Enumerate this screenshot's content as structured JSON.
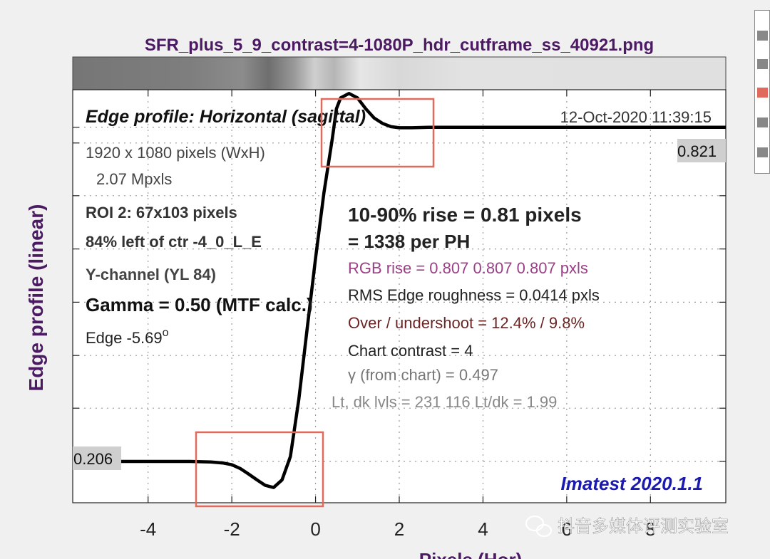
{
  "title": "SFR_plus_5_9_contrast=4-1080P_hdr_cutframe_ss_40921.png",
  "chart_data": {
    "type": "line",
    "title": "Edge profile: Horizontal (sagittal)",
    "datetime": "12-Oct-2020 11:39:15",
    "xlabel": "Pixels (Hor)",
    "ylabel": "Edge profile (linear)",
    "xlim": [
      -5.8,
      9.8
    ],
    "ylim": [
      0.13,
      0.89
    ],
    "xticks": [
      "-4",
      "-2",
      "0",
      "2",
      "4",
      "6",
      "8"
    ],
    "xtick_values": [
      -4,
      -2,
      0,
      2,
      4,
      6,
      8
    ],
    "y_tick_values": [
      0.206,
      0.304,
      0.401,
      0.499,
      0.597,
      0.695,
      0.792,
      0.821
    ],
    "grid": true,
    "low_level_label": "0.206",
    "high_level_label": "0.821",
    "series": [
      {
        "x": [
          -5.8,
          -5.0,
          -4.0,
          -3.0,
          -2.5,
          -2.2,
          -2.0,
          -1.8,
          -1.6,
          -1.4,
          -1.2,
          -1.0,
          -0.8,
          -0.6,
          -0.4,
          -0.2,
          0.0,
          0.2,
          0.4,
          0.5,
          0.6,
          0.8,
          1.0,
          1.2,
          1.4,
          1.6,
          1.8,
          2.0,
          2.3,
          2.7,
          3.0,
          4.0,
          5.0,
          6.0,
          7.0,
          8.0,
          9.0,
          9.8
        ],
        "y": [
          0.206,
          0.206,
          0.206,
          0.206,
          0.205,
          0.203,
          0.2,
          0.193,
          0.183,
          0.172,
          0.162,
          0.158,
          0.172,
          0.215,
          0.32,
          0.45,
          0.58,
          0.7,
          0.8,
          0.855,
          0.875,
          0.883,
          0.875,
          0.855,
          0.838,
          0.828,
          0.822,
          0.82,
          0.82,
          0.821,
          0.821,
          0.821,
          0.821,
          0.821,
          0.821,
          0.821,
          0.821,
          0.821
        ]
      }
    ],
    "annotations": {
      "left": [
        "1920 x 1080 pixels (WxH)",
        "2.07 Mpxls",
        "ROI 2:  67x103 pixels",
        "84% left of ctr  -4_0_L_E",
        "Y-channel  (YL 84)",
        "Gamma = 0.50 (MTF calc.)",
        "Edge  -5.69"
      ],
      "edge_degree": "o",
      "rise": "10-90% rise = 0.81 pixels",
      "per_ph": "=   1338 per PH",
      "rgb_rise": "RGB rise =  0.807   0.807   0.807 pxls",
      "rms": "RMS Edge roughness = 0.0414 pxls",
      "overshoot": "Over / undershoot = 12.4% /  9.8%",
      "chart_contrast": "Chart contrast = 4",
      "gamma_chart": "γ (from chart) = 0.497",
      "levels": "Lt, dk lvls = 231  116  Lt/dk = 1.99",
      "software": "Imatest 2020.1.1"
    },
    "colors": {
      "title_purple": "#4b1a62",
      "rgb_rise": "#9b3f87",
      "overshoot": "#6b2424",
      "software": "#1a1ab0",
      "highlight_box": "#e06a5c",
      "levels_gray": "#777777"
    }
  },
  "watermark": "抖音多媒体评测实验室"
}
